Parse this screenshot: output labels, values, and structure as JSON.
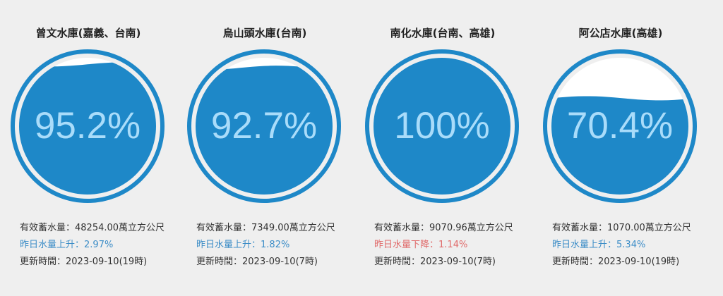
{
  "colors": {
    "background": "#efefef",
    "ring": "#1e88c8",
    "water": "#1e88c8",
    "percent_text": "#a9dcfa",
    "rise_text": "#3c8dc7",
    "fall_text": "#e06b6b"
  },
  "reservoirs": [
    {
      "title": "曾文水庫(嘉義、台南)",
      "percent_label": "95.2%",
      "fill_fraction": 0.952,
      "storage_label": "有效蓄水量：",
      "storage_value": "48254.00萬立方公尺",
      "change_label": "昨日水量上升：",
      "change_value": "2.97%",
      "change_direction": "up",
      "update_label": "更新時間：",
      "update_value": "2023-09-10(19時)"
    },
    {
      "title": "烏山頭水庫(台南)",
      "percent_label": "92.7%",
      "fill_fraction": 0.927,
      "storage_label": "有效蓄水量：",
      "storage_value": "7349.00萬立方公尺",
      "change_label": "昨日水量上升：",
      "change_value": "1.82%",
      "change_direction": "up",
      "update_label": "更新時間：",
      "update_value": "2023-09-10(7時)"
    },
    {
      "title": "南化水庫(台南、高雄)",
      "percent_label": "100%",
      "fill_fraction": 1.0,
      "storage_label": "有效蓄水量：",
      "storage_value": "9070.96萬立方公尺",
      "change_label": "昨日水量下降：",
      "change_value": "1.14%",
      "change_direction": "down",
      "update_label": "更新時間：",
      "update_value": "2023-09-10(7時)"
    },
    {
      "title": "阿公店水庫(高雄)",
      "percent_label": "70.4%",
      "fill_fraction": 0.704,
      "storage_label": "有效蓄水量：",
      "storage_value": "1070.00萬立方公尺",
      "change_label": "昨日水量上升：",
      "change_value": "5.34%",
      "change_direction": "up",
      "update_label": "更新時間：",
      "update_value": "2023-09-10(19時)"
    }
  ]
}
